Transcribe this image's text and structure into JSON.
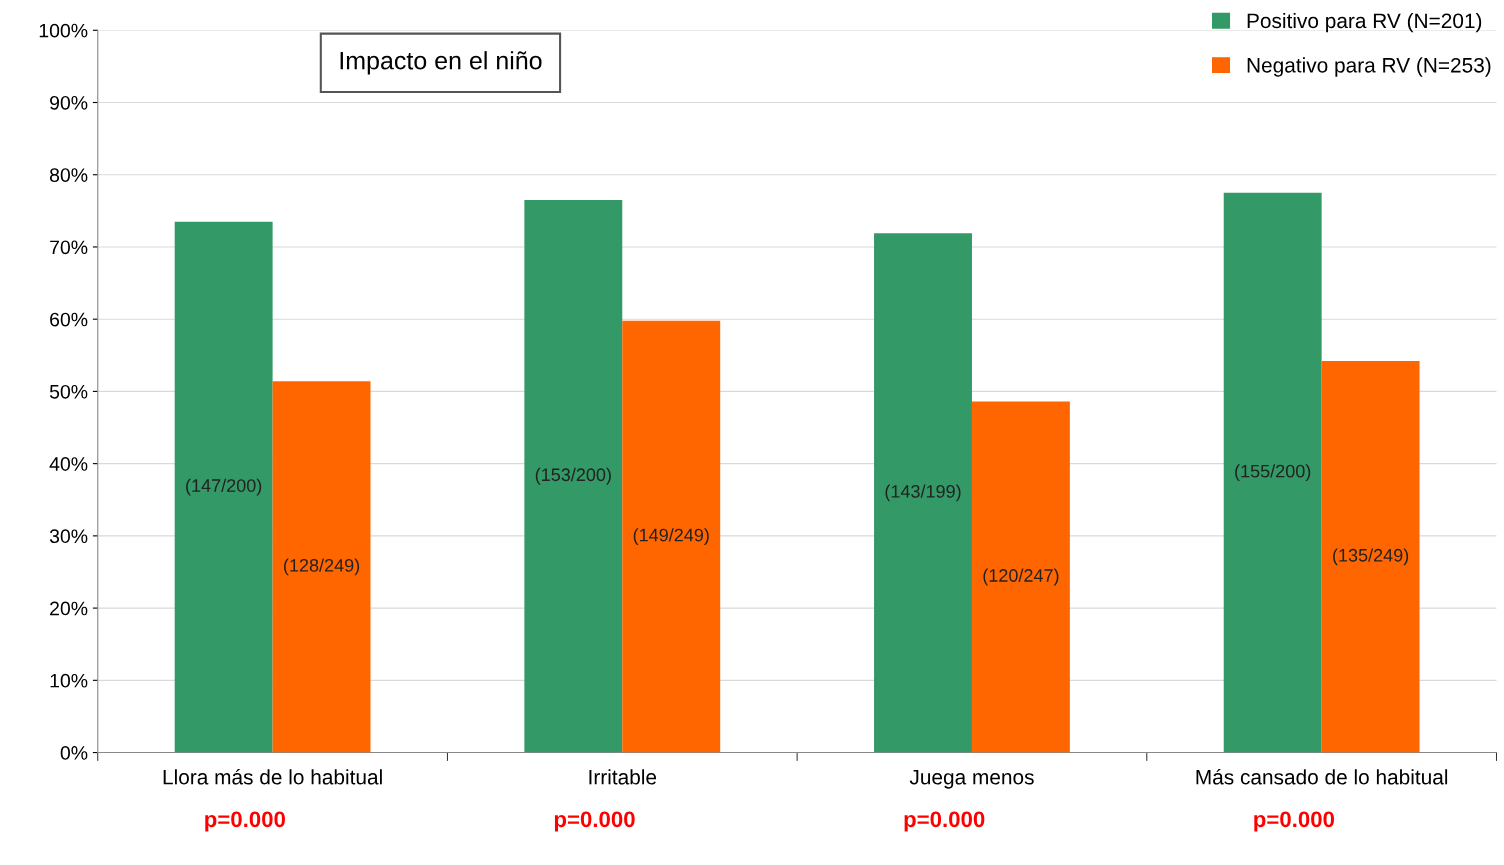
{
  "chart_data": {
    "type": "bar",
    "title": "Impacto en el niño",
    "categories": [
      "Llora más de lo habitual",
      "Irritable",
      "Juega menos",
      "Más cansado de lo habitual"
    ],
    "series": [
      {
        "name": "Positivo para RV (N=201)",
        "color": "#339966",
        "values": [
          73.5,
          76.5,
          71.9,
          77.5
        ],
        "value_labels": [
          "(147/200)",
          "(153/200)",
          "(143/199)",
          "(155/200)"
        ]
      },
      {
        "name": "Negativo para RV (N=253)",
        "color": "#ff6600",
        "values": [
          51.4,
          59.8,
          48.6,
          54.2
        ],
        "value_labels": [
          "(128/249)",
          "(149/249)",
          "(120/247)",
          "(135/249)"
        ]
      }
    ],
    "ylim": [
      0,
      100
    ],
    "yticks": [
      {
        "value": 0,
        "label": "0%"
      },
      {
        "value": 10,
        "label": "10%"
      },
      {
        "value": 20,
        "label": "20%"
      },
      {
        "value": 30,
        "label": "30%"
      },
      {
        "value": 40,
        "label": "40%"
      },
      {
        "value": 50,
        "label": "50%"
      },
      {
        "value": 60,
        "label": "60%"
      },
      {
        "value": 70,
        "label": "70%"
      },
      {
        "value": 80,
        "label": "80%"
      },
      {
        "value": 90,
        "label": "90%"
      },
      {
        "value": 100,
        "label": "100%"
      }
    ],
    "grid": "y",
    "legend": "top right",
    "annotations": [
      "p=0.000",
      "p=0.000",
      "p=0.000",
      "p=0.000"
    ]
  }
}
